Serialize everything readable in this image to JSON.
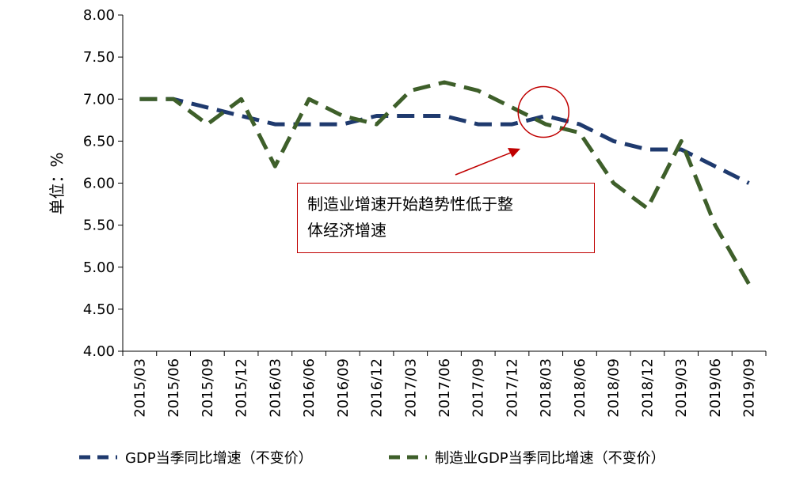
{
  "chart_data": {
    "type": "line",
    "title": "",
    "ylabel": "单位：%",
    "xlabel": "",
    "ylim": [
      4.0,
      8.0
    ],
    "y_ticks": [
      "4.00",
      "4.50",
      "5.00",
      "5.50",
      "6.00",
      "6.50",
      "7.00",
      "7.50",
      "8.00"
    ],
    "categories": [
      "2015/03",
      "2015/06",
      "2015/09",
      "2015/12",
      "2016/03",
      "2016/06",
      "2016/09",
      "2016/12",
      "2017/03",
      "2017/06",
      "2017/09",
      "2017/12",
      "2018/03",
      "2018/06",
      "2018/09",
      "2018/12",
      "2019/03",
      "2019/06",
      "2019/09"
    ],
    "series": [
      {
        "name": "GDP当季同比增速（不变价）",
        "color": "#1f3a6e",
        "values": [
          7.0,
          7.0,
          6.9,
          6.8,
          6.7,
          6.7,
          6.7,
          6.8,
          6.8,
          6.8,
          6.7,
          6.7,
          6.8,
          6.7,
          6.5,
          6.4,
          6.4,
          6.2,
          6.0
        ]
      },
      {
        "name": "制造业GDP当季同比增速（不变价）",
        "color": "#3e5f2a",
        "values": [
          7.0,
          7.0,
          6.7,
          7.0,
          6.2,
          7.0,
          6.8,
          6.7,
          7.1,
          7.2,
          7.1,
          6.9,
          6.7,
          6.6,
          6.0,
          5.7,
          6.5,
          5.5,
          4.8
        ]
      }
    ],
    "legend_position": "bottom",
    "grid": false,
    "annotation": {
      "text_line1": "制造业增速开始趋势性低于整",
      "text_line2": "体经济增速",
      "border_color": "#c00000",
      "target_category": "2018/03"
    }
  }
}
